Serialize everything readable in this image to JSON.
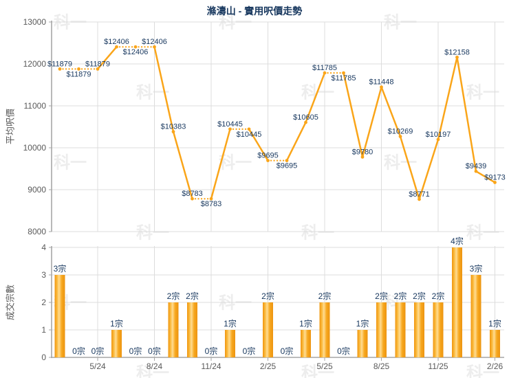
{
  "title": "滌濤山 - 實用呎價走勢",
  "watermark": {
    "text": "科一"
  },
  "colors": {
    "title": "#17375E",
    "data_label": "#17375E",
    "tick_label": "#595959",
    "gridline": "#DCDCDC",
    "axis": "#A6A6A6",
    "line": "#FAA519",
    "bar_gradient": [
      "#F0950C",
      "#FBBE45",
      "#FFDC92",
      "#F7A81F",
      "#EC9410"
    ]
  },
  "chart_data": [
    {
      "type": "line",
      "name": "average-price-per-sqft",
      "ylabel": "平均呎價",
      "ylim": [
        8000,
        13000
      ],
      "yticks": [
        8000,
        9000,
        10000,
        11000,
        12000,
        13000
      ],
      "n_points": 24,
      "x_tick_labels": [
        "5/24",
        "8/24",
        "11/24",
        "2/25",
        "5/25",
        "8/25",
        "11/25",
        "2/26"
      ],
      "x_tick_indices": [
        3,
        6,
        9,
        12,
        15,
        18,
        21,
        24
      ],
      "values": [
        11879,
        11879,
        11879,
        12406,
        12406,
        12406,
        10383,
        8783,
        8783,
        10445,
        10445,
        9695,
        9695,
        10605,
        11785,
        11785,
        9780,
        11448,
        10269,
        8771,
        10197,
        12158,
        9439,
        9173
      ],
      "point_labels": [
        "$11879",
        "$11879",
        "$11879",
        "$12406",
        "$12406",
        "$12406",
        "$10383",
        "$8783",
        "$8783",
        "$10445",
        "$10445",
        "$9695",
        "$9695",
        "$10605",
        "$11785",
        "$11785",
        "$9780",
        "$11448",
        "$10269",
        "$8771",
        "$10197",
        "$12158",
        "$9439",
        "$9173"
      ],
      "label_side": [
        "above",
        "below",
        "above",
        "above",
        "below",
        "above",
        "above",
        "above",
        "below",
        "above",
        "below",
        "above",
        "below",
        "above",
        "above",
        "below",
        "above",
        "above",
        "above",
        "above",
        "above",
        "above",
        "above",
        "above"
      ],
      "flat_segments_dotted": true,
      "grid": true,
      "legend": "none"
    },
    {
      "type": "bar",
      "name": "transaction-count",
      "ylabel": "成交宗數",
      "ylim": [
        0,
        4
      ],
      "yticks": [
        0,
        1,
        2,
        3,
        4
      ],
      "n_points": 24,
      "x_tick_labels": [
        "5/24",
        "8/24",
        "11/24",
        "2/25",
        "5/25",
        "8/25",
        "11/25",
        "2/26"
      ],
      "x_tick_indices": [
        3,
        6,
        9,
        12,
        15,
        18,
        21,
        24
      ],
      "values": [
        3,
        0,
        0,
        1,
        0,
        0,
        2,
        2,
        0,
        1,
        0,
        2,
        0,
        1,
        2,
        0,
        1,
        2,
        2,
        2,
        2,
        4,
        3,
        1
      ],
      "bar_labels": [
        "3宗",
        "0宗",
        "0宗",
        "1宗",
        "0宗",
        "0宗",
        "2宗",
        "2宗",
        "0宗",
        "1宗",
        "0宗",
        "2宗",
        "0宗",
        "1宗",
        "2宗",
        "0宗",
        "1宗",
        "2宗",
        "2宗",
        "2宗",
        "2宗",
        "4宗",
        "3宗",
        "1宗"
      ],
      "grid": true,
      "legend": "none"
    }
  ]
}
